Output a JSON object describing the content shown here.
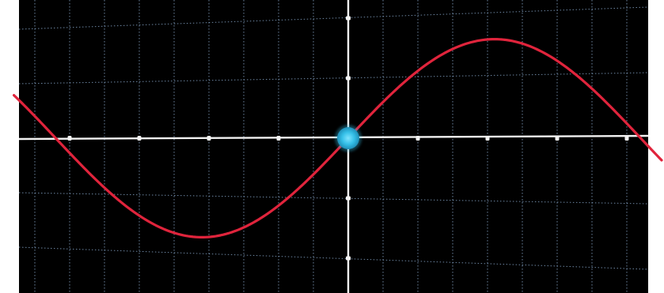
{
  "chart_data": {
    "type": "line",
    "title": "",
    "xlabel": "",
    "ylabel": "",
    "grid": true,
    "legend": "none",
    "xlim": [
      -4.8,
      4.5
    ],
    "ylim": [
      -2.05,
      2.3
    ],
    "x_ticks": [
      -4,
      -3,
      -2,
      -1,
      1,
      2,
      3,
      4
    ],
    "y_ticks": [
      -2,
      -1,
      1,
      2
    ],
    "series": [
      {
        "function": "sine",
        "amplitude": 1.65,
        "period": 8.4,
        "phase": 0,
        "color": "#e0243c",
        "x": [
          -4.8,
          -4.2,
          -3.15,
          -2.1,
          -1.05,
          0,
          1.05,
          2.1,
          3.15,
          4.2,
          4.5
        ],
        "y": [
          0.62,
          0,
          -1.17,
          -1.65,
          -1.17,
          0,
          1.17,
          1.65,
          1.17,
          0,
          -0.37
        ]
      }
    ],
    "highlight_point": {
      "x": 0,
      "y": 0,
      "color": "#35c0e8"
    }
  },
  "colors": {
    "background": "#000000",
    "axes": "#f2f2f2",
    "grid": "#8fb0d6",
    "curve": "#e0243c",
    "highlight": "#35c0e8",
    "page": "#ffffff"
  }
}
